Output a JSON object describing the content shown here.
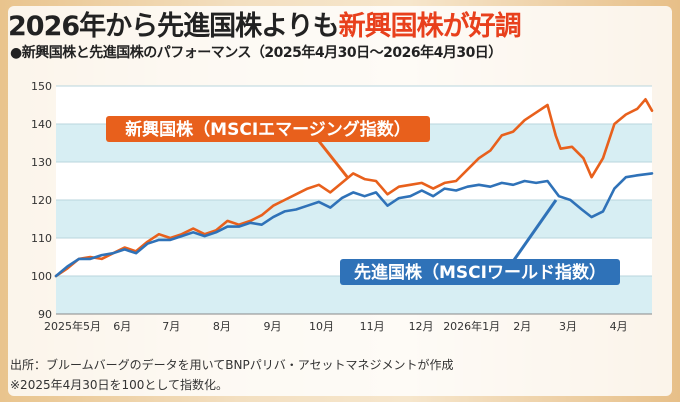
{
  "header": {
    "title_prefix": "2026年から先進国株よりも",
    "title_highlight": "新興国株が好調",
    "subtitle": "●新興国株と先進国株のパフォーマンス（2025年4月30日〜2026年4月30日）"
  },
  "footer": {
    "source": "出所：ブルームバーグのデータを用いてBNPパリバ・アセットマネジメントが作成",
    "note": "※2025年4月30日を100として指数化。"
  },
  "colors": {
    "emerging": "#e8601c",
    "developed": "#2f72b8",
    "band": "#d7eef3",
    "title_accent": "#e8401c"
  },
  "chart_data": {
    "type": "line",
    "ylim": [
      90,
      150
    ],
    "yticks": [
      90,
      100,
      110,
      120,
      130,
      140,
      150
    ],
    "xlim": [
      "2025-04-30",
      "2026-04-30"
    ],
    "xtick_labels": [
      {
        "date": "2025-05-02",
        "label": "2025年5月"
      },
      {
        "date": "2025-06-01",
        "label": "6月"
      },
      {
        "date": "2025-07-01",
        "label": "7月"
      },
      {
        "date": "2025-08-01",
        "label": "8月"
      },
      {
        "date": "2025-09-01",
        "label": "9月"
      },
      {
        "date": "2025-10-01",
        "label": "10月"
      },
      {
        "date": "2025-11-01",
        "label": "11月"
      },
      {
        "date": "2025-12-01",
        "label": "12月"
      },
      {
        "date": "2026-01-01",
        "label": "2026年1月"
      },
      {
        "date": "2026-02-01",
        "label": "2月"
      },
      {
        "date": "2026-03-01",
        "label": "3月"
      },
      {
        "date": "2026-04-01",
        "label": "4月"
      }
    ],
    "series": [
      {
        "name": "新興国株（MSCIエマージング指数）",
        "color": "#e8601c",
        "points": [
          [
            "2025-04-30",
            100.0
          ],
          [
            "2025-05-07",
            102.0
          ],
          [
            "2025-05-14",
            104.5
          ],
          [
            "2025-05-21",
            105.0
          ],
          [
            "2025-05-28",
            104.5
          ],
          [
            "2025-06-04",
            106.0
          ],
          [
            "2025-06-11",
            107.5
          ],
          [
            "2025-06-18",
            106.5
          ],
          [
            "2025-06-25",
            109.0
          ],
          [
            "2025-07-02",
            111.0
          ],
          [
            "2025-07-09",
            110.0
          ],
          [
            "2025-07-16",
            111.0
          ],
          [
            "2025-07-23",
            112.5
          ],
          [
            "2025-07-30",
            111.0
          ],
          [
            "2025-08-06",
            112.0
          ],
          [
            "2025-08-13",
            114.5
          ],
          [
            "2025-08-20",
            113.5
          ],
          [
            "2025-08-27",
            114.5
          ],
          [
            "2025-09-03",
            116.0
          ],
          [
            "2025-09-10",
            118.5
          ],
          [
            "2025-09-17",
            120.0
          ],
          [
            "2025-09-24",
            121.5
          ],
          [
            "2025-10-01",
            123.0
          ],
          [
            "2025-10-08",
            124.0
          ],
          [
            "2025-10-15",
            122.0
          ],
          [
            "2025-10-22",
            124.5
          ],
          [
            "2025-10-29",
            127.0
          ],
          [
            "2025-11-05",
            125.5
          ],
          [
            "2025-11-12",
            125.0
          ],
          [
            "2025-11-19",
            121.5
          ],
          [
            "2025-11-26",
            123.5
          ],
          [
            "2025-12-03",
            124.0
          ],
          [
            "2025-12-10",
            124.5
          ],
          [
            "2025-12-17",
            123.0
          ],
          [
            "2025-12-24",
            124.5
          ],
          [
            "2025-12-31",
            125.0
          ],
          [
            "2026-01-07",
            128.0
          ],
          [
            "2026-01-14",
            131.0
          ],
          [
            "2026-01-21",
            133.0
          ],
          [
            "2026-01-28",
            137.0
          ],
          [
            "2026-02-04",
            138.0
          ],
          [
            "2026-02-11",
            141.0
          ],
          [
            "2026-02-18",
            143.0
          ],
          [
            "2026-02-25",
            145.0
          ],
          [
            "2026-03-02",
            137.0
          ],
          [
            "2026-03-05",
            133.5
          ],
          [
            "2026-03-12",
            134.0
          ],
          [
            "2026-03-19",
            131.0
          ],
          [
            "2026-03-24",
            126.0
          ],
          [
            "2026-03-31",
            131.0
          ],
          [
            "2026-04-07",
            140.0
          ],
          [
            "2026-04-14",
            142.5
          ],
          [
            "2026-04-21",
            144.0
          ],
          [
            "2026-04-26",
            146.5
          ],
          [
            "2026-04-30",
            143.5
          ]
        ]
      },
      {
        "name": "先進国株（MSCIワールド指数）",
        "color": "#2f72b8",
        "points": [
          [
            "2025-04-30",
            100.0
          ],
          [
            "2025-05-07",
            102.5
          ],
          [
            "2025-05-14",
            104.5
          ],
          [
            "2025-05-21",
            104.5
          ],
          [
            "2025-05-28",
            105.5
          ],
          [
            "2025-06-04",
            106.0
          ],
          [
            "2025-06-11",
            107.0
          ],
          [
            "2025-06-18",
            106.0
          ],
          [
            "2025-06-25",
            108.5
          ],
          [
            "2025-07-02",
            109.5
          ],
          [
            "2025-07-09",
            109.5
          ],
          [
            "2025-07-16",
            110.5
          ],
          [
            "2025-07-23",
            111.5
          ],
          [
            "2025-07-30",
            110.5
          ],
          [
            "2025-08-06",
            111.5
          ],
          [
            "2025-08-13",
            113.0
          ],
          [
            "2025-08-20",
            113.0
          ],
          [
            "2025-08-27",
            114.0
          ],
          [
            "2025-09-03",
            113.5
          ],
          [
            "2025-09-10",
            115.5
          ],
          [
            "2025-09-17",
            117.0
          ],
          [
            "2025-09-24",
            117.5
          ],
          [
            "2025-10-01",
            118.5
          ],
          [
            "2025-10-08",
            119.5
          ],
          [
            "2025-10-15",
            118.0
          ],
          [
            "2025-10-22",
            120.5
          ],
          [
            "2025-10-29",
            122.0
          ],
          [
            "2025-11-05",
            121.0
          ],
          [
            "2025-11-12",
            122.0
          ],
          [
            "2025-11-19",
            118.5
          ],
          [
            "2025-11-26",
            120.5
          ],
          [
            "2025-12-03",
            121.0
          ],
          [
            "2025-12-10",
            122.5
          ],
          [
            "2025-12-17",
            121.0
          ],
          [
            "2025-12-24",
            123.0
          ],
          [
            "2025-12-31",
            122.5
          ],
          [
            "2026-01-07",
            123.5
          ],
          [
            "2026-01-14",
            124.0
          ],
          [
            "2026-01-21",
            123.5
          ],
          [
            "2026-01-28",
            124.5
          ],
          [
            "2026-02-04",
            124.0
          ],
          [
            "2026-02-11",
            125.0
          ],
          [
            "2026-02-18",
            124.5
          ],
          [
            "2026-02-25",
            125.0
          ],
          [
            "2026-03-04",
            121.0
          ],
          [
            "2026-03-11",
            120.0
          ],
          [
            "2026-03-18",
            117.5
          ],
          [
            "2026-03-24",
            115.5
          ],
          [
            "2026-03-31",
            117.0
          ],
          [
            "2026-04-07",
            123.0
          ],
          [
            "2026-04-14",
            126.0
          ],
          [
            "2026-04-21",
            126.5
          ],
          [
            "2026-04-30",
            127.0
          ]
        ]
      }
    ],
    "labels": {
      "emerging": "新興国株（MSCIエマージング指数）",
      "developed": "先進国株（MSCIワールド指数）"
    }
  }
}
